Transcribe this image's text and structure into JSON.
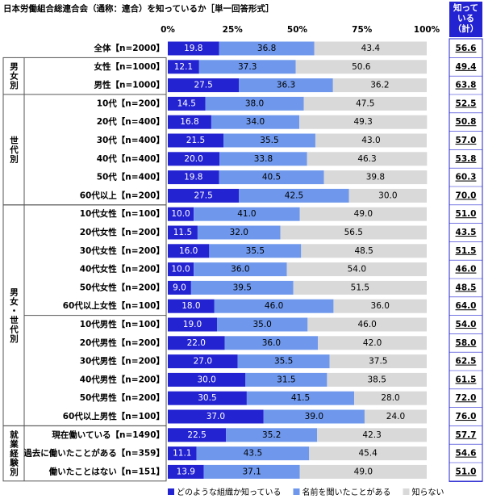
{
  "chart_data": {
    "type": "stacked-bar-horizontal",
    "title": "日本労働組合総連合会（通称：連合）を知っているか［単一回答形式］",
    "groups": [
      {
        "label": null,
        "categories": [
          "全体【n=2000】"
        ]
      },
      {
        "label": "男女別",
        "categories": [
          "女性【n=1000】",
          "男性【n=1000】"
        ]
      },
      {
        "label": "世代別",
        "categories": [
          "10代【n=200】",
          "20代【n=400】",
          "30代【n=400】",
          "40代【n=400】",
          "50代【n=400】",
          "60代以上【n=200】"
        ]
      },
      {
        "label": "男女・世代別",
        "categories": [
          "10代女性【n=100】",
          "20代女性【n=200】",
          "30代女性【n=200】",
          "40代女性【n=200】",
          "50代女性【n=200】",
          "60代以上女性【n=100】",
          "10代男性【n=100】",
          "20代男性【n=200】",
          "30代男性【n=200】",
          "40代男性【n=200】",
          "50代男性【n=200】",
          "60代以上男性【n=100】"
        ]
      },
      {
        "label": "就業経験別",
        "categories": [
          "現在働いている【n=1490】",
          "過去に働いたことがある【n=359】",
          "働いたことはない【n=151】"
        ]
      }
    ],
    "series": [
      {
        "name": "どのような組織か知っている",
        "color": "#2323d2",
        "values": [
          19.8,
          12.1,
          27.5,
          14.5,
          16.8,
          21.5,
          20.0,
          19.8,
          27.5,
          10.0,
          11.5,
          16.0,
          10.0,
          9.0,
          18.0,
          19.0,
          22.0,
          27.0,
          30.0,
          30.5,
          37.0,
          22.5,
          11.1,
          13.9
        ],
        "value_labels": [
          "19.8",
          "12.1",
          "27.5",
          "14.5",
          "16.8",
          "21.5",
          "20.0",
          "19.8",
          "27.5",
          "10.0",
          "11.5",
          "16.0",
          "10.0",
          "9.0",
          "18.0",
          "19.0",
          "22.0",
          "27.0",
          "30.0",
          "30.5",
          "37.0",
          "22.5",
          "11.1",
          "13.9"
        ]
      },
      {
        "name": "名前を聞いたことがある",
        "color": "#6f98ec",
        "values": [
          36.8,
          37.3,
          36.3,
          38.0,
          34.0,
          35.5,
          33.8,
          40.5,
          42.5,
          41.0,
          32.0,
          35.5,
          36.0,
          39.5,
          46.0,
          35.0,
          36.0,
          35.5,
          31.5,
          41.5,
          39.0,
          35.2,
          43.5,
          37.1
        ],
        "value_labels": [
          "36.8",
          "37.3",
          "36.3",
          "38.0",
          "34.0",
          "35.5",
          "33.8",
          "40.5",
          "42.5",
          "41.0",
          "32.0",
          "35.5",
          "36.0",
          "39.5",
          "46.0",
          "35.0",
          "36.0",
          "35.5",
          "31.5",
          "41.5",
          "39.0",
          "35.2",
          "43.5",
          "37.1"
        ]
      },
      {
        "name": "知らない",
        "color": "#d9d9d9",
        "values": [
          43.4,
          50.6,
          36.2,
          47.5,
          49.3,
          43.0,
          46.3,
          39.8,
          30.0,
          49.0,
          56.5,
          48.5,
          54.0,
          51.5,
          36.0,
          46.0,
          42.0,
          37.5,
          38.5,
          28.0,
          24.0,
          42.3,
          45.4,
          49.0
        ],
        "value_labels": [
          "43.4",
          "50.6",
          "36.2",
          "47.5",
          "49.3",
          "43.0",
          "46.3",
          "39.8",
          "30.0",
          "49.0",
          "56.5",
          "48.5",
          "54.0",
          "51.5",
          "36.0",
          "46.0",
          "42.0",
          "37.5",
          "38.5",
          "28.0",
          "24.0",
          "42.3",
          "45.4",
          "49.0"
        ]
      }
    ],
    "totals": {
      "header": [
        "知って",
        "いる",
        "（計）"
      ],
      "values": [
        56.6,
        49.4,
        63.8,
        52.5,
        50.8,
        57.0,
        53.8,
        60.3,
        70.0,
        51.0,
        43.5,
        51.5,
        46.0,
        48.5,
        64.0,
        54.0,
        58.0,
        62.5,
        61.5,
        72.0,
        76.0,
        57.7,
        54.6,
        51.0
      ],
      "value_labels": [
        "56.6",
        "49.4",
        "63.8",
        "52.5",
        "50.8",
        "57.0",
        "53.8",
        "60.3",
        "70.0",
        "51.0",
        "43.5",
        "51.5",
        "46.0",
        "48.5",
        "64.0",
        "54.0",
        "58.0",
        "62.5",
        "61.5",
        "72.0",
        "76.0",
        "57.7",
        "54.6",
        "51.0"
      ]
    },
    "xlim": [
      0,
      100
    ],
    "xticks": [
      {
        "value": 0,
        "label": "0%"
      },
      {
        "value": 25,
        "label": "25%"
      },
      {
        "value": 50,
        "label": "50%"
      },
      {
        "value": 75,
        "label": "75%"
      },
      {
        "value": 100,
        "label": "100%"
      }
    ],
    "legend": "bottom"
  }
}
